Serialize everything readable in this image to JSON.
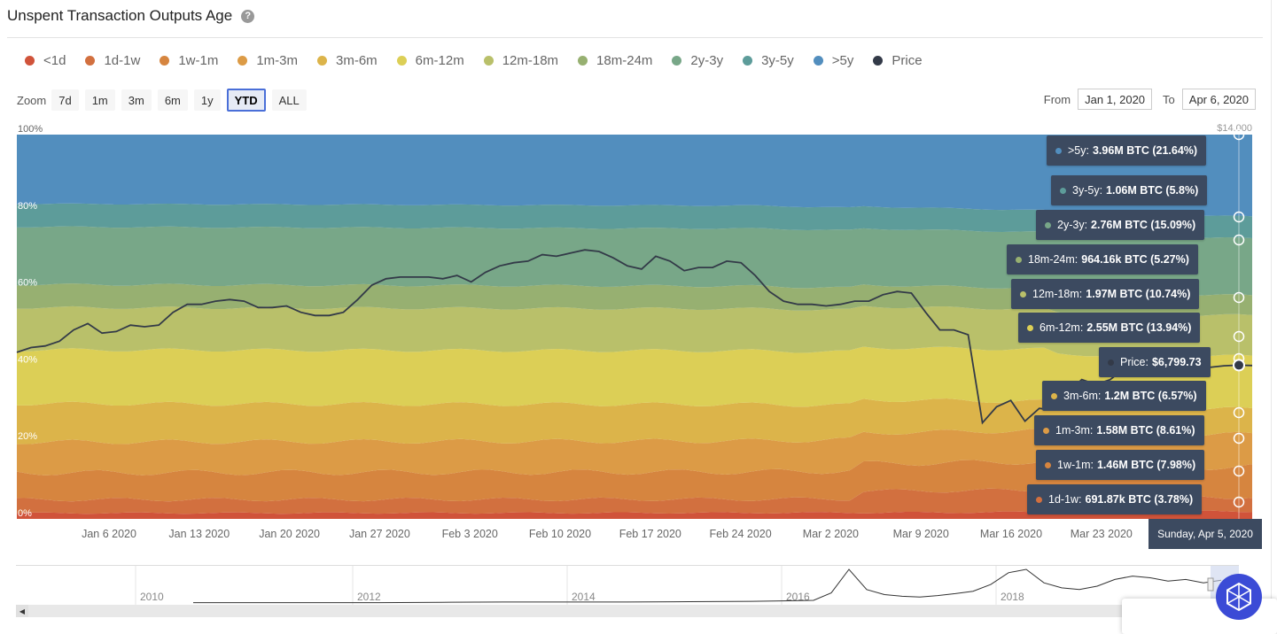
{
  "title": "Unspent Transaction Outputs Age",
  "help_glyph": "?",
  "legend": [
    {
      "label": "<1d",
      "color": "#d0533a"
    },
    {
      "label": "1d-1w",
      "color": "#d2703f"
    },
    {
      "label": "1w-1m",
      "color": "#d6853f"
    },
    {
      "label": "1m-3m",
      "color": "#dc9b46"
    },
    {
      "label": "3m-6m",
      "color": "#dcb44a"
    },
    {
      "label": "6m-12m",
      "color": "#dccf56"
    },
    {
      "label": "12m-18m",
      "color": "#b9c06a"
    },
    {
      "label": "18m-24m",
      "color": "#97b071"
    },
    {
      "label": "2y-3y",
      "color": "#78a788"
    },
    {
      "label": "3y-5y",
      "color": "#5d9c9a"
    },
    {
      "label": ">5y",
      "color": "#528ebe"
    },
    {
      "label": "Price",
      "color": "#333a48"
    }
  ],
  "zoom": {
    "label": "Zoom",
    "buttons": [
      "7d",
      "1m",
      "3m",
      "6m",
      "1y",
      "YTD",
      "ALL"
    ],
    "active": "YTD"
  },
  "range": {
    "from_label": "From",
    "from_value": "Jan 1, 2020",
    "to_label": "To",
    "to_value": "Apr 6, 2020"
  },
  "chart_data": {
    "type": "area",
    "stacked": "percent",
    "x_tick_labels": [
      "Jan 6 2020",
      "Jan 13 2020",
      "Jan 20 2020",
      "Jan 27 2020",
      "Feb 3 2020",
      "Feb 10 2020",
      "Feb 17 2020",
      "Feb 24 2020",
      "Mar 2 2020",
      "Mar 9 2020",
      "Mar 16 2020",
      "Mar 23 2020"
    ],
    "y_tick_labels": [
      "0%",
      "20%",
      "40%",
      "60%",
      "80%",
      "100%"
    ],
    "y2_tick_labels": [
      "$14,000"
    ],
    "ylim": [
      0,
      100
    ],
    "y2lim": [
      2000,
      14000
    ],
    "series_bands_pct_start": [
      {
        "name": "<1d",
        "value": 1.5
      },
      {
        "name": "1d-1w",
        "value": 3.5
      },
      {
        "name": "1w-1m",
        "value": 7
      },
      {
        "name": "1m-3m",
        "value": 8
      },
      {
        "name": "3m-6m",
        "value": 10
      },
      {
        "name": "6m-12m",
        "value": 14
      },
      {
        "name": "12m-18m",
        "value": 11
      },
      {
        "name": "18m-24m",
        "value": 6
      },
      {
        "name": "2y-3y",
        "value": 15
      },
      {
        "name": "3y-5y",
        "value": 6
      },
      {
        "name": ">5y",
        "value": 18
      }
    ],
    "series_bands_pct_end": [
      {
        "name": "<1d",
        "value": 2
      },
      {
        "name": "1d-1w",
        "value": 3.78
      },
      {
        "name": "1w-1m",
        "value": 7.98
      },
      {
        "name": "1m-3m",
        "value": 8.61
      },
      {
        "name": "3m-6m",
        "value": 6.57
      },
      {
        "name": "6m-12m",
        "value": 13.94
      },
      {
        "name": "12m-18m",
        "value": 10.74
      },
      {
        "name": "18m-24m",
        "value": 5.27
      },
      {
        "name": "2y-3y",
        "value": 15.09
      },
      {
        "name": "3y-5y",
        "value": 5.8
      },
      {
        "name": ">5y",
        "value": 21.64
      }
    ],
    "price": [
      7200,
      7350,
      7400,
      7550,
      7900,
      8100,
      7800,
      7850,
      8050,
      8000,
      8050,
      8450,
      8700,
      8700,
      8800,
      8850,
      8800,
      8600,
      8600,
      8650,
      8450,
      8350,
      8350,
      8450,
      8850,
      9300,
      9500,
      9550,
      9550,
      9550,
      9500,
      9600,
      9400,
      9700,
      9900,
      10000,
      10050,
      10250,
      10200,
      10300,
      10400,
      10350,
      10150,
      9900,
      9800,
      10200,
      10050,
      9750,
      9850,
      9850,
      10050,
      10000,
      9600,
      9100,
      8800,
      8700,
      8700,
      8650,
      8700,
      8800,
      8800,
      9000,
      9100,
      9050,
      8450,
      7900,
      7900,
      7750,
      5000,
      5500,
      5700,
      5050,
      5450,
      5400,
      5950,
      6350,
      6200,
      6350,
      6700,
      6700,
      6800,
      6750,
      6900,
      6800,
      6730,
      6780,
      6800,
      6790
    ],
    "price_end": 6799.73
  },
  "tooltips": [
    {
      "label": ">5y:",
      "value": "3.96M BTC (21.64%)",
      "color": "#528ebe"
    },
    {
      "label": "3y-5y:",
      "value": "1.06M BTC (5.8%)",
      "color": "#5d9c9a"
    },
    {
      "label": "2y-3y:",
      "value": "2.76M BTC (15.09%)",
      "color": "#78a788"
    },
    {
      "label": "18m-24m:",
      "value": "964.16k BTC (5.27%)",
      "color": "#97b071"
    },
    {
      "label": "12m-18m:",
      "value": "1.97M BTC (10.74%)",
      "color": "#b9c06a"
    },
    {
      "label": "6m-12m:",
      "value": "2.55M BTC (13.94%)",
      "color": "#dccf56"
    },
    {
      "label": "Price:",
      "value": "$6,799.73",
      "color": "#333a48"
    },
    {
      "label": "3m-6m:",
      "value": "1.2M BTC (6.57%)",
      "color": "#dcb44a"
    },
    {
      "label": "1m-3m:",
      "value": "1.58M BTC (8.61%)",
      "color": "#dc9b46"
    },
    {
      "label": "1w-1m:",
      "value": "1.46M BTC (7.98%)",
      "color": "#d6853f"
    },
    {
      "label": "1d-1w:",
      "value": "691.87k BTC (3.78%)",
      "color": "#d2703f"
    }
  ],
  "date_tooltip": "Sunday, Apr 5, 2020",
  "navigator": {
    "year_labels": [
      "2010",
      "2012",
      "2014",
      "2016",
      "2018"
    ],
    "price_history": [
      1,
      1,
      1,
      1,
      2,
      3,
      3,
      3,
      4,
      5,
      8,
      30,
      100,
      40,
      25,
      20,
      18,
      22,
      28,
      35,
      55,
      90,
      100,
      60,
      45,
      40,
      50,
      70,
      80,
      75,
      65,
      70,
      60,
      68
    ]
  }
}
